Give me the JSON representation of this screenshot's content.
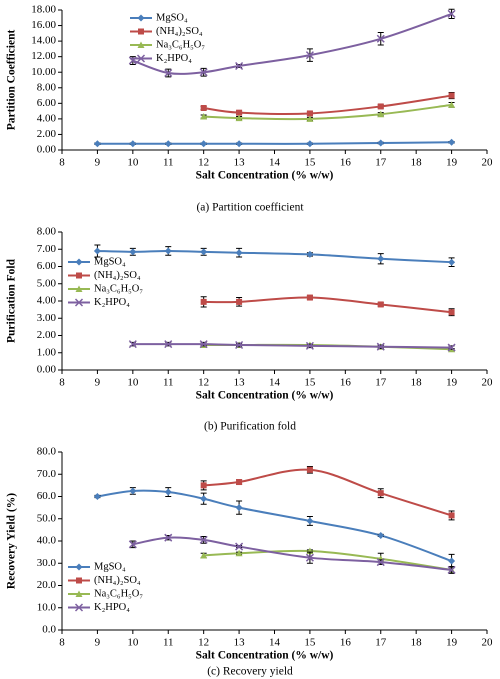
{
  "chart_data": [
    {
      "type": "line",
      "ylabel": "Partition Coefficient",
      "xlabel": "Salt Concentration (% w/w)",
      "caption": "(a) Partition coefficient",
      "xlim": [
        8,
        20
      ],
      "xticks": [
        8,
        9,
        10,
        11,
        12,
        13,
        14,
        15,
        16,
        17,
        18,
        19,
        20
      ],
      "ylim": [
        0,
        18
      ],
      "yticks": [
        {
          "value": 0,
          "label": "0.00"
        },
        {
          "value": 2,
          "label": "2.00"
        },
        {
          "value": 4,
          "label": "4.00"
        },
        {
          "value": 6,
          "label": "6.00"
        },
        {
          "value": 8,
          "label": "8.00"
        },
        {
          "value": 10,
          "label": "10.00"
        },
        {
          "value": 12,
          "label": "12.00"
        },
        {
          "value": 14,
          "label": "14.00"
        },
        {
          "value": 16,
          "label": "16.00"
        },
        {
          "value": 18,
          "label": "18.00"
        }
      ],
      "legend": "upper left",
      "series": [
        {
          "name": "MgSO₄",
          "color": "#4a7ebb",
          "marker": "diamond",
          "x": [
            9,
            10,
            11,
            12,
            13,
            15,
            17,
            19
          ],
          "values": [
            0.8,
            0.8,
            0.8,
            0.8,
            0.8,
            0.8,
            0.9,
            1.0
          ],
          "errors": [
            0.1,
            0.1,
            0.1,
            0.1,
            0.1,
            0.1,
            0.1,
            0.1
          ]
        },
        {
          "name": "(NH₄)₂SO₄",
          "color": "#be4b48",
          "marker": "square",
          "x": [
            12,
            13,
            15,
            17,
            19
          ],
          "values": [
            5.4,
            4.8,
            4.7,
            5.6,
            7.0
          ],
          "errors": [
            0.2,
            0.2,
            0.2,
            0.2,
            0.4
          ]
        },
        {
          "name": "Na₃C₆H₅O₇",
          "color": "#98b954",
          "marker": "triangle",
          "x": [
            12,
            13,
            15,
            17,
            19
          ],
          "values": [
            4.3,
            4.1,
            4.0,
            4.6,
            5.8
          ],
          "errors": [
            0.2,
            0.2,
            0.2,
            0.2,
            0.3
          ]
        },
        {
          "name": "K₂HPO₄",
          "color": "#7d60a0",
          "marker": "x",
          "x": [
            10,
            11,
            12,
            13,
            15,
            17,
            19
          ],
          "values": [
            11.5,
            9.9,
            10.0,
            10.8,
            12.2,
            14.3,
            17.5
          ],
          "errors": [
            0.5,
            0.5,
            0.5,
            0.2,
            0.8,
            0.8,
            0.6
          ]
        }
      ]
    },
    {
      "type": "line",
      "ylabel": "Purification Fold",
      "xlabel": "Salt Concentration (% w/w)",
      "caption": "(b) Purification fold",
      "xlim": [
        8,
        20
      ],
      "xticks": [
        8,
        9,
        10,
        11,
        12,
        13,
        14,
        15,
        16,
        17,
        18,
        19,
        20
      ],
      "ylim": [
        0,
        8
      ],
      "yticks": [
        {
          "value": 0,
          "label": "0.00"
        },
        {
          "value": 1,
          "label": "1.00"
        },
        {
          "value": 2,
          "label": "2.00"
        },
        {
          "value": 3,
          "label": "3.00"
        },
        {
          "value": 4,
          "label": "4.00"
        },
        {
          "value": 5,
          "label": "5.00"
        },
        {
          "value": 6,
          "label": "6.00"
        },
        {
          "value": 7,
          "label": "7.00"
        },
        {
          "value": 8,
          "label": "8.00"
        }
      ],
      "legend": "center left",
      "series": [
        {
          "name": "MgSO₄",
          "color": "#4a7ebb",
          "marker": "diamond",
          "x": [
            9,
            10,
            11,
            12,
            13,
            15,
            17,
            19
          ],
          "values": [
            6.9,
            6.85,
            6.9,
            6.85,
            6.8,
            6.7,
            6.45,
            6.25
          ],
          "errors": [
            0.35,
            0.2,
            0.25,
            0.2,
            0.25,
            0.1,
            0.3,
            0.25
          ]
        },
        {
          "name": "(NH₄)₂SO₄",
          "color": "#be4b48",
          "marker": "square",
          "x": [
            12,
            13,
            15,
            17,
            19
          ],
          "values": [
            3.95,
            3.95,
            4.2,
            3.8,
            3.35
          ],
          "errors": [
            0.3,
            0.25,
            0.1,
            0.1,
            0.2
          ]
        },
        {
          "name": "Na₃C₆H₅O₇",
          "color": "#98b954",
          "marker": "triangle",
          "x": [
            12,
            13,
            15,
            17,
            19
          ],
          "values": [
            1.45,
            1.45,
            1.45,
            1.35,
            1.2
          ],
          "errors": [
            0.05,
            0.05,
            0.05,
            0.05,
            0.05
          ]
        },
        {
          "name": "K₂HPO₄",
          "color": "#7d60a0",
          "marker": "x",
          "x": [
            10,
            11,
            12,
            13,
            15,
            17,
            19
          ],
          "values": [
            1.5,
            1.5,
            1.5,
            1.45,
            1.4,
            1.35,
            1.3
          ],
          "errors": [
            0.1,
            0.1,
            0.1,
            0.1,
            0.1,
            0.1,
            0.1
          ]
        }
      ]
    },
    {
      "type": "line",
      "ylabel": "Recovery  Yield (%)",
      "xlabel": "Salt Concentration (% w/w)",
      "caption": "(c) Recovery yield",
      "xlim": [
        8,
        20
      ],
      "xticks": [
        8,
        9,
        10,
        11,
        12,
        13,
        14,
        15,
        16,
        17,
        18,
        19,
        20
      ],
      "ylim": [
        0,
        80
      ],
      "yticks": [
        {
          "value": 0,
          "label": "0.0"
        },
        {
          "value": 10,
          "label": "10.0"
        },
        {
          "value": 20,
          "label": "20.0"
        },
        {
          "value": 30,
          "label": "30.0"
        },
        {
          "value": 40,
          "label": "40.0"
        },
        {
          "value": 50,
          "label": "50.0"
        },
        {
          "value": 60,
          "label": "60.0"
        },
        {
          "value": 70,
          "label": "70.0"
        },
        {
          "value": 80,
          "label": "80.0"
        }
      ],
      "legend": "lower left",
      "series": [
        {
          "name": "MgSO₄",
          "color": "#4a7ebb",
          "marker": "diamond",
          "x": [
            9,
            10,
            11,
            12,
            13,
            15,
            17,
            19
          ],
          "values": [
            60,
            62.5,
            62,
            59,
            55,
            49,
            42.5,
            31
          ],
          "errors": [
            0.5,
            1.5,
            2,
            2.5,
            3,
            2,
            0.5,
            3
          ]
        },
        {
          "name": "(NH₄)₂SO₄",
          "color": "#be4b48",
          "marker": "square",
          "x": [
            12,
            13,
            15,
            17,
            19
          ],
          "values": [
            65,
            66.5,
            72,
            61.5,
            51.5
          ],
          "errors": [
            2,
            1,
            1.5,
            2,
            2
          ]
        },
        {
          "name": "Na₃C₆H₅O₇",
          "color": "#98b954",
          "marker": "triangle",
          "x": [
            12,
            13,
            15,
            17,
            19
          ],
          "values": [
            33.5,
            34.5,
            35.5,
            32,
            27
          ],
          "errors": [
            1,
            0.5,
            0.5,
            2.5,
            1.5
          ]
        },
        {
          "name": "K₂HPO₄",
          "color": "#7d60a0",
          "marker": "x",
          "x": [
            10,
            11,
            12,
            13,
            15,
            17,
            19
          ],
          "values": [
            38.5,
            41.5,
            40.5,
            37.5,
            32.5,
            30.5,
            27
          ],
          "errors": [
            1.5,
            1,
            1.5,
            0.5,
            2.5,
            1,
            1.5
          ]
        }
      ]
    }
  ]
}
